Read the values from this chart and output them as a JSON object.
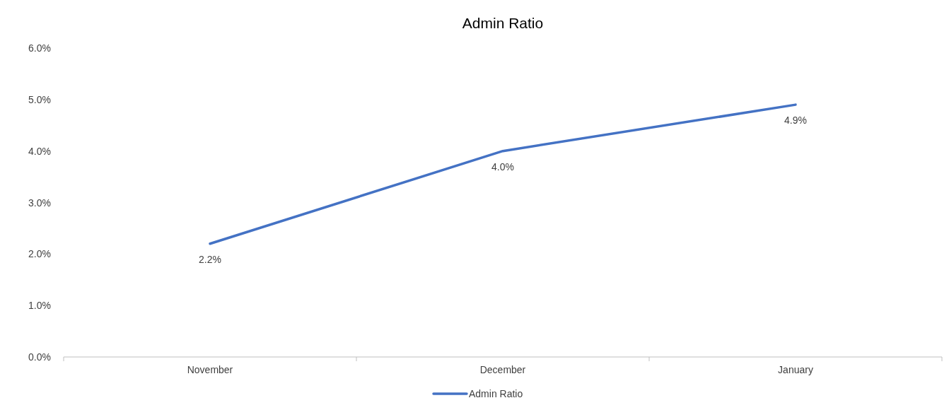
{
  "chart_data": {
    "type": "line",
    "title": "Admin Ratio",
    "categories": [
      "November",
      "December",
      "January"
    ],
    "series": [
      {
        "name": "Admin Ratio",
        "color": "#4472c4",
        "values": [
          2.2,
          4.0,
          4.9
        ],
        "value_labels": [
          "2.2%",
          "4.0%",
          "4.9%"
        ]
      }
    ],
    "ylim": [
      0,
      6
    ],
    "yticks": [
      {
        "value": 0,
        "label": "0.0%"
      },
      {
        "value": 1,
        "label": "1.0%"
      },
      {
        "value": 2,
        "label": "2.0%"
      },
      {
        "value": 3,
        "label": "3.0%"
      },
      {
        "value": 4,
        "label": "4.0%"
      },
      {
        "value": 5,
        "label": "5.0%"
      },
      {
        "value": 6,
        "label": "6.0%"
      }
    ],
    "grid": false,
    "legend": "bottom",
    "marker": "none",
    "line_style": "solid"
  }
}
